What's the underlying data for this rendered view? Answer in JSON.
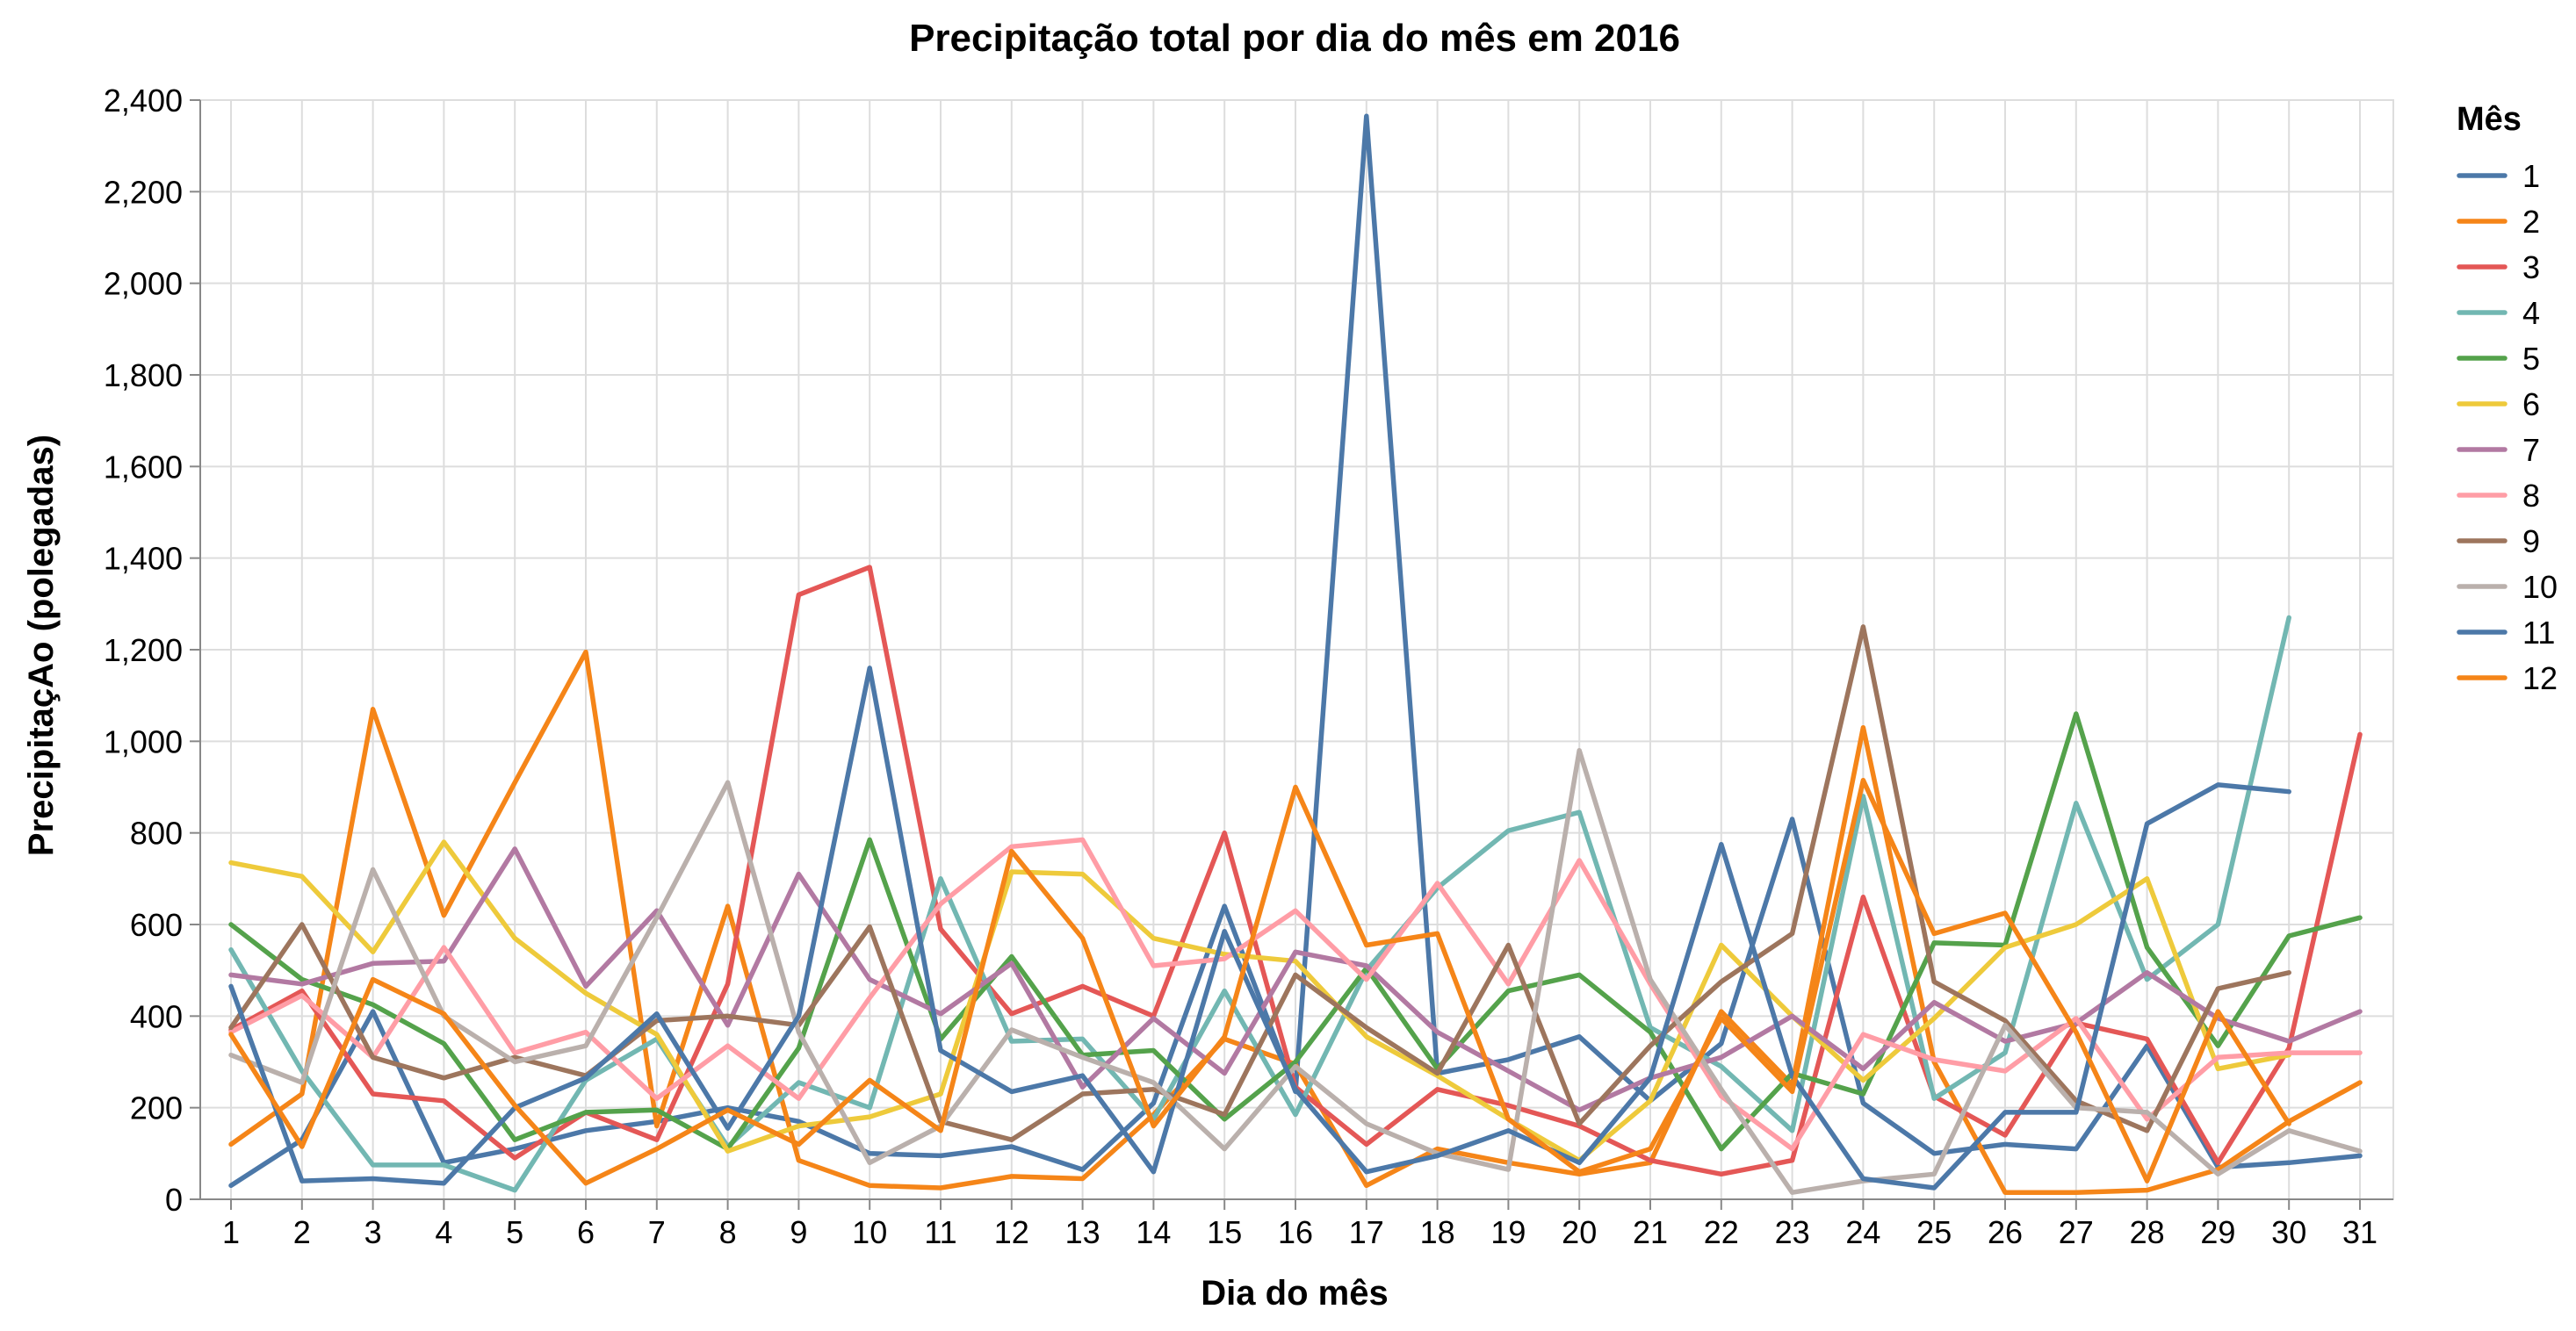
{
  "chart_data": {
    "type": "line",
    "title": "Precipitação total por dia do mês em 2016",
    "xlabel": "Dia do mês",
    "ylabel": "PrecipitaçAo (polegadas)",
    "ylim": [
      0,
      2400
    ],
    "yticks": [
      0,
      200,
      400,
      600,
      800,
      1000,
      1200,
      1400,
      1600,
      1800,
      2000,
      2200,
      2400
    ],
    "ytick_labels": [
      "0",
      "200",
      "400",
      "600",
      "800",
      "1,000",
      "1,200",
      "1,400",
      "1,600",
      "1,800",
      "2,000",
      "2,200",
      "2,400"
    ],
    "x": [
      1,
      2,
      3,
      4,
      5,
      6,
      7,
      8,
      9,
      10,
      11,
      12,
      13,
      14,
      15,
      16,
      17,
      18,
      19,
      20,
      21,
      22,
      23,
      24,
      25,
      26,
      27,
      28,
      29,
      30,
      31
    ],
    "grid": true,
    "legend_title": "Mês",
    "legend_position": "right",
    "series": [
      {
        "name": "1",
        "color": "#4c78a8",
        "values": [
          30,
          130,
          410,
          80,
          110,
          150,
          170,
          200,
          170,
          100,
          95,
          115,
          65,
          210,
          640,
          235,
          2365,
          275,
          305,
          355,
          215,
          340,
          830,
          210,
          100,
          120,
          110,
          335,
          70,
          80,
          95
        ]
      },
      {
        "name": "2",
        "color": "#f58518",
        "values": [
          120,
          230,
          1070,
          620,
          910,
          1195,
          160,
          640,
          85,
          30,
          25,
          50,
          45,
          185,
          350,
          295,
          30,
          110,
          80,
          55,
          80,
          410,
          250,
          1030,
          300,
          15,
          15,
          20,
          65,
          170,
          255
        ]
      },
      {
        "name": "3",
        "color": "#e45756",
        "values": [
          370,
          455,
          230,
          215,
          90,
          190,
          130,
          470,
          1320,
          1380,
          590,
          405,
          465,
          400,
          800,
          245,
          120,
          240,
          205,
          160,
          85,
          55,
          85,
          660,
          225,
          140,
          385,
          350,
          80,
          330,
          1015
        ]
      },
      {
        "name": "4",
        "color": "#72b7b2",
        "values": [
          545,
          280,
          75,
          75,
          20,
          260,
          350,
          115,
          255,
          200,
          700,
          345,
          350,
          175,
          455,
          185,
          500,
          680,
          805,
          845,
          375,
          290,
          150,
          880,
          220,
          320,
          865,
          480,
          600,
          1270,
          null
        ]
      },
      {
        "name": "5",
        "color": "#54a24b",
        "values": [
          600,
          480,
          425,
          340,
          130,
          190,
          195,
          110,
          330,
          785,
          350,
          530,
          315,
          325,
          175,
          300,
          505,
          285,
          455,
          490,
          365,
          110,
          275,
          230,
          560,
          555,
          1060,
          550,
          335,
          575,
          615
        ]
      },
      {
        "name": "6",
        "color": "#eeca3b",
        "values": [
          735,
          705,
          540,
          780,
          570,
          450,
          360,
          105,
          160,
          180,
          230,
          715,
          710,
          570,
          535,
          520,
          355,
          270,
          175,
          85,
          215,
          555,
          400,
          260,
          395,
          550,
          600,
          700,
          285,
          315,
          null
        ]
      },
      {
        "name": "7",
        "color": "#b279a2",
        "values": [
          490,
          470,
          515,
          520,
          765,
          465,
          630,
          380,
          710,
          480,
          405,
          515,
          245,
          395,
          275,
          540,
          510,
          365,
          280,
          195,
          265,
          310,
          400,
          285,
          430,
          345,
          385,
          495,
          395,
          345,
          410
        ]
      },
      {
        "name": "8",
        "color": "#ff9da6",
        "values": [
          365,
          445,
          310,
          550,
          320,
          365,
          220,
          335,
          220,
          440,
          645,
          770,
          785,
          510,
          525,
          630,
          480,
          690,
          470,
          740,
          470,
          225,
          110,
          360,
          305,
          280,
          395,
          175,
          310,
          320,
          320
        ]
      },
      {
        "name": "9",
        "color": "#9d755d",
        "values": [
          375,
          600,
          310,
          265,
          310,
          270,
          390,
          400,
          380,
          595,
          170,
          130,
          230,
          240,
          185,
          490,
          375,
          275,
          555,
          165,
          335,
          475,
          580,
          1250,
          475,
          390,
          215,
          150,
          460,
          495,
          null
        ]
      },
      {
        "name": "10",
        "color": "#bab0ac",
        "values": [
          315,
          255,
          720,
          400,
          300,
          335,
          615,
          910,
          365,
          80,
          160,
          370,
          310,
          255,
          110,
          290,
          165,
          100,
          65,
          980,
          480,
          240,
          15,
          40,
          55,
          380,
          200,
          190,
          55,
          150,
          105
        ]
      },
      {
        "name": "11",
        "color": "#4c78a8",
        "values": [
          465,
          40,
          45,
          35,
          200,
          265,
          405,
          155,
          400,
          1160,
          325,
          235,
          270,
          60,
          585,
          240,
          60,
          95,
          150,
          80,
          265,
          775,
          270,
          45,
          25,
          190,
          190,
          820,
          905,
          890,
          null
        ]
      },
      {
        "name": "12",
        "color": "#f58518",
        "values": [
          360,
          115,
          480,
          405,
          205,
          35,
          110,
          195,
          120,
          260,
          150,
          760,
          570,
          160,
          355,
          900,
          555,
          580,
          175,
          60,
          110,
          395,
          235,
          915,
          580,
          625,
          365,
          40,
          410,
          165,
          null
        ]
      }
    ]
  }
}
